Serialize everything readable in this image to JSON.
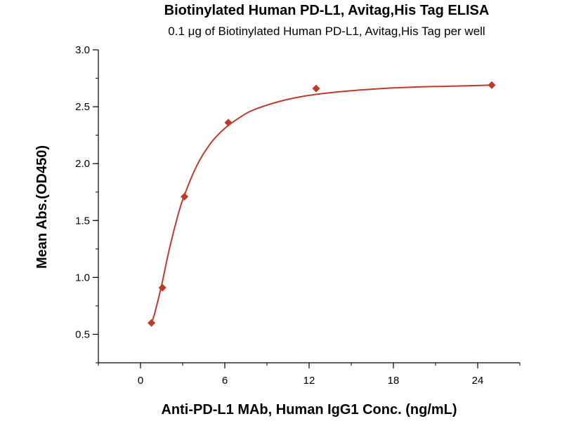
{
  "chart_data": {
    "type": "scatter",
    "title": "Biotinylated Human PD-L1, Avitag,His Tag ELISA",
    "subtitle": "0.1 μg of Biotinylated Human PD-L1, Avitag,His Tag per well",
    "xlabel": "Anti-PD-L1 MAb, Human IgG1 Conc. (ng/mL)",
    "ylabel": "Mean Abs.(OD450)",
    "xlim": [
      -3,
      27
    ],
    "ylim": [
      0.25,
      3.0
    ],
    "x_ticks": [
      0,
      6,
      12,
      18,
      24
    ],
    "x_tick_labels": [
      "0",
      "6",
      "12",
      "18",
      "24"
    ],
    "y_ticks": [
      0.5,
      1.0,
      1.5,
      2.0,
      2.5,
      3.0
    ],
    "y_tick_labels": [
      "0.5",
      "1.0",
      "1.5",
      "2.0",
      "2.5",
      "3.0"
    ],
    "grid": false,
    "legend": "none",
    "series": [
      {
        "marker": "diamond",
        "color": "#c0392b",
        "x": [
          0.78,
          1.56,
          3.13,
          6.25,
          12.5,
          25
        ],
        "y": [
          0.6,
          0.91,
          1.71,
          2.36,
          2.66,
          2.69
        ]
      }
    ],
    "fit_curve": {
      "color": "#c0392b",
      "x": [
        0.78,
        1.0,
        1.5,
        2.0,
        2.5,
        3.0,
        4.0,
        5.0,
        6.0,
        7.0,
        8.0,
        10.0,
        12.0,
        14.0,
        16.0,
        18.0,
        20.0,
        22.0,
        25.0
      ],
      "y": [
        0.6,
        0.68,
        0.93,
        1.22,
        1.47,
        1.68,
        1.98,
        2.18,
        2.31,
        2.4,
        2.47,
        2.55,
        2.6,
        2.63,
        2.65,
        2.665,
        2.675,
        2.68,
        2.69
      ]
    }
  }
}
